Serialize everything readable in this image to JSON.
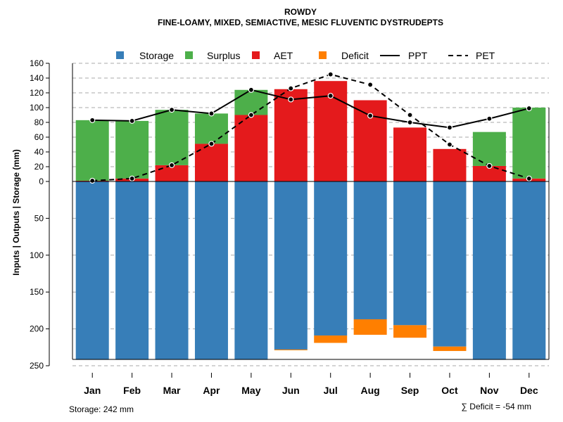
{
  "chart_data": {
    "type": "bar",
    "title": "ROWDY",
    "subtitle": "FINE-LOAMY, MIXED, SEMIACTIVE, MESIC FLUVENTIC DYSTRUDEPTS",
    "ylabel": "Inputs | Outputs | Storage    (mm)",
    "categories": [
      "Jan",
      "Feb",
      "Mar",
      "Apr",
      "May",
      "Jun",
      "Jul",
      "Aug",
      "Sep",
      "Oct",
      "Nov",
      "Dec"
    ],
    "upper_ylim": [
      0,
      160
    ],
    "upper_ticks": [
      "160",
      "140",
      "120",
      "100",
      "80",
      "60",
      "40",
      "20",
      "0"
    ],
    "lower_ylim": [
      0,
      250
    ],
    "lower_ticks": [
      "50",
      "100",
      "150",
      "200",
      "250"
    ],
    "legend": {
      "storage": "Storage",
      "surplus": "Surplus",
      "aet": "AET",
      "deficit": "Deficit",
      "ppt": "PPT",
      "pet": "PET"
    },
    "colors": {
      "storage": "#377EB8",
      "surplus": "#4DAF4A",
      "aet": "#E41A1C",
      "deficit": "#FF7F00"
    },
    "series": [
      {
        "name": "AET",
        "values": [
          1,
          4,
          22,
          51,
          90,
          125,
          136,
          110,
          73,
          44,
          21,
          4
        ]
      },
      {
        "name": "Surplus",
        "values": [
          82,
          78,
          75,
          41,
          34,
          0,
          0,
          0,
          0,
          0,
          46,
          96
        ]
      },
      {
        "name": "Storage",
        "values": [
          242,
          242,
          242,
          242,
          242,
          228,
          209,
          187,
          195,
          224,
          242,
          242
        ]
      },
      {
        "name": "Deficit",
        "values": [
          0,
          0,
          0,
          0,
          0,
          1,
          10,
          21,
          17,
          6,
          0,
          0
        ]
      },
      {
        "name": "PPT",
        "values": [
          83,
          82,
          97,
          92,
          124,
          111,
          116,
          89,
          80,
          73,
          85,
          99
        ]
      },
      {
        "name": "PET",
        "values": [
          1,
          4,
          22,
          51,
          90,
          126,
          145,
          131,
          90,
          50,
          21,
          4
        ]
      }
    ],
    "storage_note": "Storage: 242 mm",
    "deficit_note": "∑ Deficit = -54 mm"
  }
}
